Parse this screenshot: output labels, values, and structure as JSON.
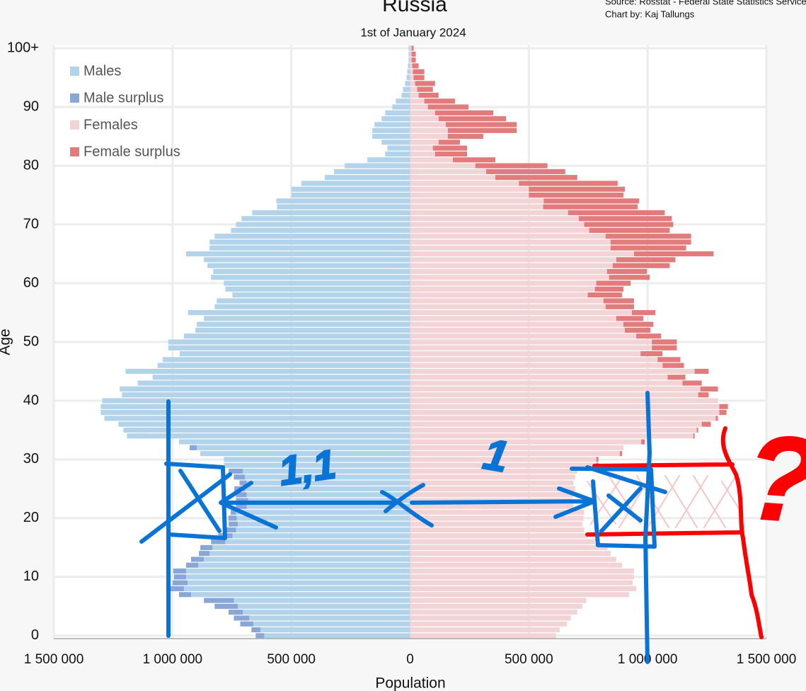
{
  "chart_data": {
    "type": "pyramid",
    "title": "Russia",
    "subtitle": "1st of January 2024",
    "source": "Source: Rosstat - Federal State Statistics Service",
    "credit": "Chart by: Kaj Tallungs",
    "x_label": "Population",
    "y_label": "Age",
    "xlim": [
      -1500000,
      1500000
    ],
    "xticks": [
      {
        "value": -1500000,
        "label": "1 500 000"
      },
      {
        "value": -1000000,
        "label": "1 000 000"
      },
      {
        "value": -500000,
        "label": "500 000"
      },
      0,
      {
        "value": 500000,
        "label": "500 000"
      },
      {
        "value": 1000000,
        "label": "1 000 000"
      },
      {
        "value": 1500000,
        "label": "1 500 000"
      }
    ],
    "ylim": [
      -0.5,
      100.5
    ],
    "yticks": [
      0,
      10,
      20,
      30,
      40,
      50,
      60,
      70,
      80,
      90,
      {
        "value": 100,
        "label": "100+"
      }
    ],
    "grid": true,
    "legend_position": "top-left",
    "ages": [
      0,
      1,
      2,
      3,
      4,
      5,
      6,
      7,
      8,
      9,
      10,
      11,
      12,
      13,
      14,
      15,
      16,
      17,
      18,
      19,
      20,
      21,
      22,
      23,
      24,
      25,
      26,
      27,
      28,
      29,
      30,
      31,
      32,
      33,
      34,
      35,
      36,
      37,
      38,
      39,
      40,
      41,
      42,
      43,
      44,
      45,
      46,
      47,
      48,
      49,
      50,
      51,
      52,
      53,
      54,
      55,
      56,
      57,
      58,
      59,
      60,
      61,
      62,
      63,
      64,
      65,
      66,
      67,
      68,
      69,
      70,
      71,
      72,
      73,
      74,
      75,
      76,
      77,
      78,
      79,
      80,
      81,
      82,
      83,
      84,
      85,
      86,
      87,
      88,
      89,
      90,
      91,
      92,
      93,
      94,
      95,
      96,
      97,
      98,
      99,
      100
    ],
    "series": [
      {
        "name": "Males",
        "color": "#b3d3ea",
        "surplus_name": "Male surplus",
        "surplus_color": "#8aa6d6",
        "side": "left",
        "values": [
          650000,
          668000,
          715000,
          742000,
          764000,
          823000,
          868000,
          973000,
          1012000,
          1000000,
          994000,
          997000,
          943000,
          922000,
          889000,
          883000,
          838000,
          808000,
          772000,
          764000,
          765000,
          755000,
          733000,
          733000,
          733000,
          740000,
          718000,
          742000,
          764000,
          784000,
          784000,
          883000,
          928000,
          973000,
          1192000,
          1207000,
          1228000,
          1287000,
          1302000,
          1302000,
          1296000,
          1213000,
          1222000,
          1147000,
          1084000,
          1198000,
          1063000,
          1042000,
          970000,
          1018000,
          1018000,
          952000,
          904000,
          898000,
          868000,
          934000,
          823000,
          814000,
          748000,
          778000,
          784000,
          838000,
          829000,
          853000,
          868000,
          943000,
          844000,
          844000,
          823000,
          754000,
          733000,
          710000,
          665000,
          560000,
          563000,
          500000,
          500000,
          458000,
          359000,
          320000,
          275000,
          180000,
          105000,
          96000,
          120000,
          159000,
          159000,
          150000,
          120000,
          105000,
          75000,
          60000,
          36000,
          30000,
          21000,
          15000,
          12000,
          9000,
          6000,
          6000,
          6000
        ]
      },
      {
        "name": "Females",
        "color": "#f2d4d6",
        "surplus_name": "Female surplus",
        "surplus_color": "#e27b7b",
        "side": "right",
        "values": [
          614000,
          630000,
          660000,
          677000,
          704000,
          725000,
          742000,
          922000,
          952000,
          937000,
          943000,
          943000,
          892000,
          868000,
          844000,
          832000,
          778000,
          748000,
          733000,
          725000,
          730000,
          733000,
          688000,
          682000,
          688000,
          695000,
          688000,
          695000,
          704000,
          793000,
          793000,
          892000,
          898000,
          988000,
          1198000,
          1213000,
          1266000,
          1296000,
          1332000,
          1338000,
          1296000,
          1257000,
          1296000,
          1228000,
          1159000,
          1257000,
          1153000,
          1138000,
          1063000,
          1123000,
          1123000,
          1057000,
          1012000,
          1024000,
          982000,
          1033000,
          943000,
          943000,
          892000,
          898000,
          928000,
          1009000,
          997000,
          1093000,
          1117000,
          1278000,
          1162000,
          1183000,
          1183000,
          1093000,
          1108000,
          1102000,
          1072000,
          958000,
          964000,
          898000,
          904000,
          874000,
          704000,
          653000,
          578000,
          359000,
          240000,
          240000,
          210000,
          308000,
          449000,
          449000,
          404000,
          350000,
          246000,
          189000,
          120000,
          96000,
          105000,
          60000,
          60000,
          36000,
          24000,
          24000,
          15000
        ]
      }
    ],
    "annotations": [
      {
        "text": "1,1",
        "color": "#0a74d6"
      },
      {
        "text": "1",
        "color": "#0a74d6"
      },
      {
        "text": "?",
        "color": "#ff0000"
      }
    ]
  }
}
